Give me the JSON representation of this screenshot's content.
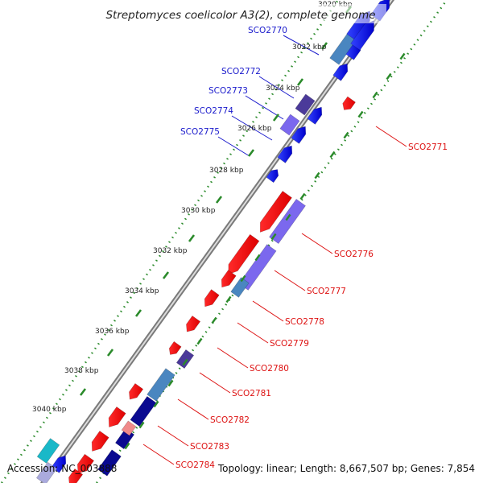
{
  "title": "Streptomyces coelicolor A3(2), complete genome",
  "footer": {
    "accession": "Accession: NC_003888",
    "summary": "Topology: linear; Length: 8,667,507 bp; Genes: 7,854"
  },
  "colors": {
    "backbone": "#8a8a8a",
    "tick": "#2a8a2a",
    "forward_gene_label": "#1a1acc",
    "reverse_gene_label": "#dd1111",
    "ruler_label": "#222222"
  },
  "ruler": [
    {
      "label": "3020 kbp"
    },
    {
      "label": "3022 kbp"
    },
    {
      "label": "3024 kbp"
    },
    {
      "label": "3026 kbp"
    },
    {
      "label": "3028 kbp"
    },
    {
      "label": "3030 kbp"
    },
    {
      "label": "3032 kbp"
    },
    {
      "label": "3034 kbp"
    },
    {
      "label": "3036 kbp"
    },
    {
      "label": "3038 kbp"
    },
    {
      "label": "3040 kbp"
    }
  ],
  "forward_labels": [
    "SCO2770",
    "SCO2772",
    "SCO2773",
    "SCO2774",
    "SCO2775"
  ],
  "reverse_labels": [
    "SCO2771",
    "SCO2776",
    "SCO2777",
    "SCO2778",
    "SCO2779",
    "SCO2780",
    "SCO2781",
    "SCO2782",
    "SCO2783",
    "SCO2784"
  ]
}
